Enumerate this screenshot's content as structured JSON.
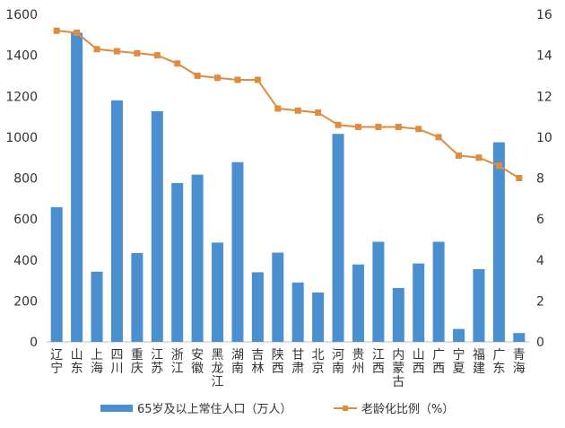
{
  "chart_data": {
    "type": "bar+line",
    "title": "",
    "categories": [
      "辽宁",
      "山东",
      "上海",
      "四川",
      "重庆",
      "江苏",
      "浙江",
      "安徽",
      "黑龙江",
      "湖南",
      "吉林",
      "陕西",
      "甘肃",
      "北京",
      "河南",
      "贵州",
      "江西",
      "内蒙古",
      "山西",
      "广西",
      "宁夏",
      "福建",
      "广东",
      "青海"
    ],
    "series": [
      {
        "name": "65岁及以上常住人口（万人）",
        "type": "bar",
        "axis": "left",
        "color": "#4a8fcf",
        "values": [
          658,
          1510,
          343,
          1180,
          434,
          1127,
          776,
          817,
          485,
          878,
          340,
          436,
          290,
          241,
          1016,
          378,
          489,
          263,
          383,
          489,
          63,
          355,
          975,
          43
        ]
      },
      {
        "name": "老龄化比例（%）",
        "type": "line",
        "axis": "right",
        "color": "#e08c3e",
        "values": [
          15.2,
          15.1,
          14.3,
          14.2,
          14.1,
          14.0,
          13.6,
          13.0,
          12.9,
          12.8,
          12.8,
          11.4,
          11.3,
          11.2,
          10.6,
          10.5,
          10.5,
          10.5,
          10.4,
          10.0,
          9.1,
          9.0,
          8.6,
          8.0
        ]
      }
    ],
    "y_left": {
      "min": 0,
      "max": 1600,
      "ticks": [
        0,
        200,
        400,
        600,
        800,
        1000,
        1200,
        1400,
        1600
      ]
    },
    "y_right": {
      "min": 0,
      "max": 16,
      "ticks": [
        0,
        2,
        4,
        6,
        8,
        10,
        12,
        14,
        16
      ]
    },
    "grid": false,
    "legend_position": "bottom",
    "legend": {
      "bar_label": "65岁及以上常住人口（万人）",
      "line_label": "老龄化比例（%）"
    }
  }
}
